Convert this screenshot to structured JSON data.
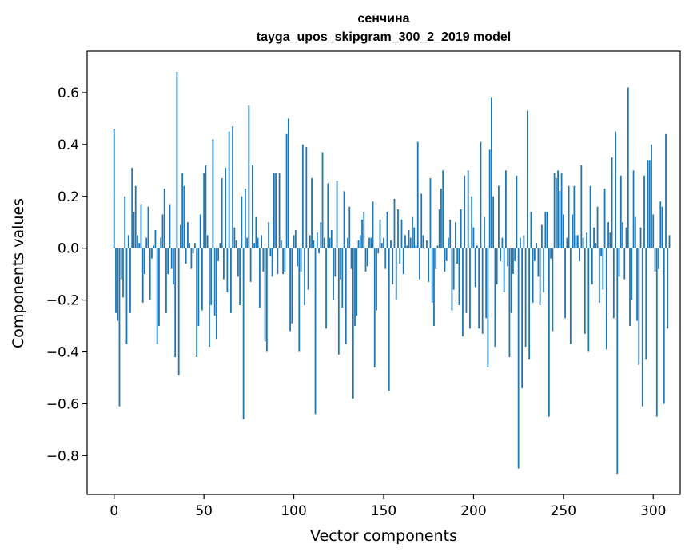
{
  "chart_data": {
    "type": "bar",
    "title": "сенчина",
    "subtitle": "tayga_upos_skipgram_300_2_2019 model",
    "xlabel": "Vector components",
    "ylabel": "Components values",
    "xlim": [
      -15,
      315
    ],
    "ylim": [
      -0.95,
      0.76
    ],
    "xticks": [
      0,
      50,
      100,
      150,
      200,
      250,
      300
    ],
    "yticks": [
      -0.8,
      -0.6,
      -0.4,
      -0.2,
      0.0,
      0.2,
      0.4,
      0.6
    ],
    "ytick_labels": [
      "−0.8",
      "−0.6",
      "−0.4",
      "−0.2",
      "0.0",
      "0.2",
      "0.4",
      "0.6"
    ],
    "grid": false,
    "color": "#1f77b4",
    "values": [
      0.46,
      -0.25,
      -0.28,
      -0.61,
      -0.12,
      -0.19,
      0.2,
      -0.37,
      0.05,
      -0.25,
      0.31,
      0.14,
      0.24,
      0.05,
      0.02,
      0.17,
      -0.21,
      -0.1,
      0.04,
      0.16,
      -0.2,
      -0.04,
      0.01,
      0.07,
      -0.37,
      -0.3,
      0.04,
      0.13,
      0.23,
      -0.25,
      -0.1,
      0.17,
      -0.08,
      -0.14,
      -0.42,
      0.68,
      -0.49,
      0.09,
      0.29,
      0.24,
      -0.06,
      0.1,
      0.02,
      -0.08,
      -0.02,
      0.02,
      -0.42,
      -0.3,
      0.13,
      -0.24,
      0.29,
      0.32,
      0.05,
      -0.38,
      -0.22,
      0.42,
      -0.26,
      -0.35,
      -0.05,
      0.02,
      0.27,
      -0.12,
      0.31,
      -0.17,
      0.45,
      -0.25,
      0.47,
      0.08,
      0.03,
      -0.11,
      -0.22,
      0.2,
      -0.66,
      0.23,
      0.04,
      0.55,
      -0.13,
      0.32,
      0.02,
      0.12,
      0.04,
      -0.23,
      0.05,
      -0.09,
      -0.36,
      -0.4,
      0.1,
      -0.03,
      -0.11,
      0.29,
      0.29,
      -0.1,
      0.29,
      0.03,
      -0.1,
      -0.09,
      0.44,
      0.5,
      -0.32,
      -0.29,
      0.05,
      0.07,
      -0.07,
      -0.4,
      -0.09,
      0.4,
      -0.22,
      0.39,
      -0.16,
      0.05,
      0.27,
      0.03,
      -0.64,
      0.06,
      -0.02,
      0.1,
      0.37,
      0.04,
      -0.31,
      0.25,
      0.04,
      0.07,
      -0.2,
      -0.11,
      0.26,
      -0.41,
      -0.12,
      -0.23,
      0.22,
      -0.37,
      0.04,
      0.16,
      -0.08,
      -0.58,
      -0.3,
      -0.26,
      0.03,
      0.05,
      0.11,
      0.14,
      -0.09,
      -0.07,
      0.04,
      0.04,
      0.18,
      -0.46,
      -0.24,
      -0.02,
      0.11,
      0.02,
      0.04,
      -0.08,
      0.14,
      -0.55,
      0.03,
      -0.14,
      0.19,
      -0.2,
      0.15,
      -0.06,
      0.11,
      -0.1,
      0.05,
      0.01,
      0.07,
      0.04,
      0.12,
      0.08,
      0.01,
      0.41,
      -0.12,
      0.21,
      0.05,
      0.0,
      0.03,
      -0.13,
      0.27,
      -0.21,
      -0.3,
      -0.08,
      0.01,
      0.15,
      0.23,
      0.3,
      -0.09,
      -0.05,
      0.04,
      0.11,
      -0.24,
      -0.16,
      0.1,
      -0.06,
      -0.22,
      0.15,
      -0.34,
      0.28,
      -0.25,
      0.3,
      -0.31,
      0.2,
      0.08,
      -0.15,
      0.01,
      -0.31,
      0.41,
      -0.33,
      0.12,
      -0.27,
      -0.46,
      0.38,
      0.58,
      0.2,
      -0.38,
      -0.14,
      0.24,
      -0.05,
      0.04,
      -0.17,
      0.3,
      -0.07,
      -0.42,
      -0.25,
      -0.1,
      -0.05,
      0.28,
      -0.85,
      0.04,
      -0.54,
      0.05,
      -0.38,
      0.53,
      -0.43,
      0.14,
      -0.21,
      -0.05,
      0.02,
      -0.11,
      -0.22,
      0.09,
      -0.17,
      0.14,
      0.14,
      -0.65,
      -0.04,
      -0.32,
      0.29,
      0.27,
      0.3,
      0.22,
      0.29,
      0.13,
      -0.27,
      0.04,
      0.24,
      -0.37,
      0.13,
      0.24,
      0.05,
      0.05,
      -0.05,
      0.32,
      0.04,
      -0.33,
      0.06,
      -0.4,
      0.24,
      -0.14,
      0.08,
      0.02,
      0.16,
      -0.21,
      -0.03,
      -0.16,
      0.23,
      -0.39,
      0.1,
      0.06,
      0.35,
      -0.27,
      0.45,
      -0.87,
      -0.11,
      0.28,
      0.1,
      -0.12,
      0.08,
      0.62,
      -0.3,
      -0.2,
      0.3,
      0.12,
      -0.28,
      -0.45,
      0.08,
      -0.61,
      0.28,
      -0.43,
      0.34,
      0.34,
      0.4,
      0.13,
      -0.09,
      -0.65,
      -0.08,
      0.18,
      0.16,
      -0.6,
      0.44,
      -0.31,
      0.05
    ]
  }
}
